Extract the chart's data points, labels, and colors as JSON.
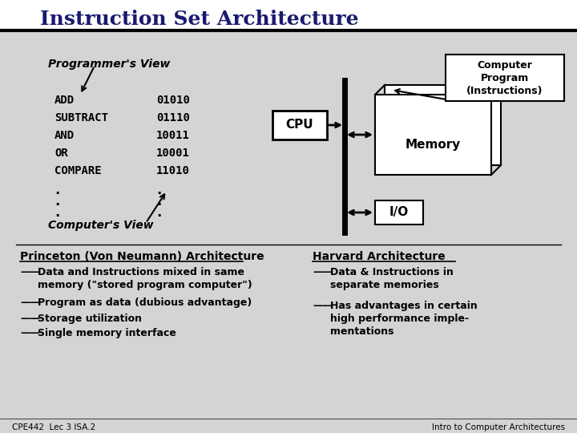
{
  "title": "Instruction Set Architecture",
  "title_fontsize": 18,
  "title_color": "#1a1a6e",
  "bg_color": "#d4d4d4",
  "text_color": "#000000",
  "programmers_view_label": "Programmer's View",
  "computers_view_label": "Computer's View",
  "isa_instructions": [
    [
      "ADD",
      "01010"
    ],
    [
      "SUBTRACT",
      "01110"
    ],
    [
      "AND",
      "10011"
    ],
    [
      "OR",
      "10001"
    ],
    [
      "COMPARE",
      "11010"
    ]
  ],
  "computer_program_label": "Computer\nProgram\n(Instructions)",
  "memory_label": "Memory",
  "cpu_label": "CPU",
  "io_label": "I/O",
  "princeton_title": "Princeton (Von Neumann) Architecture",
  "princeton_bullets": [
    "Data and Instructions mixed in same\nmemory (\"stored program computer\")",
    "Program as data (dubious advantage)",
    "Storage utilization",
    "Single memory interface"
  ],
  "harvard_title": "Harvard Architecture",
  "harvard_bullets": [
    "Data & Instructions in\nseparate memories",
    "Has advantages in certain\nhigh performance imple-\nmentations"
  ],
  "footer_left": "CPE442  Lec 3 ISA.2",
  "footer_right": "Intro to Computer Architectures"
}
